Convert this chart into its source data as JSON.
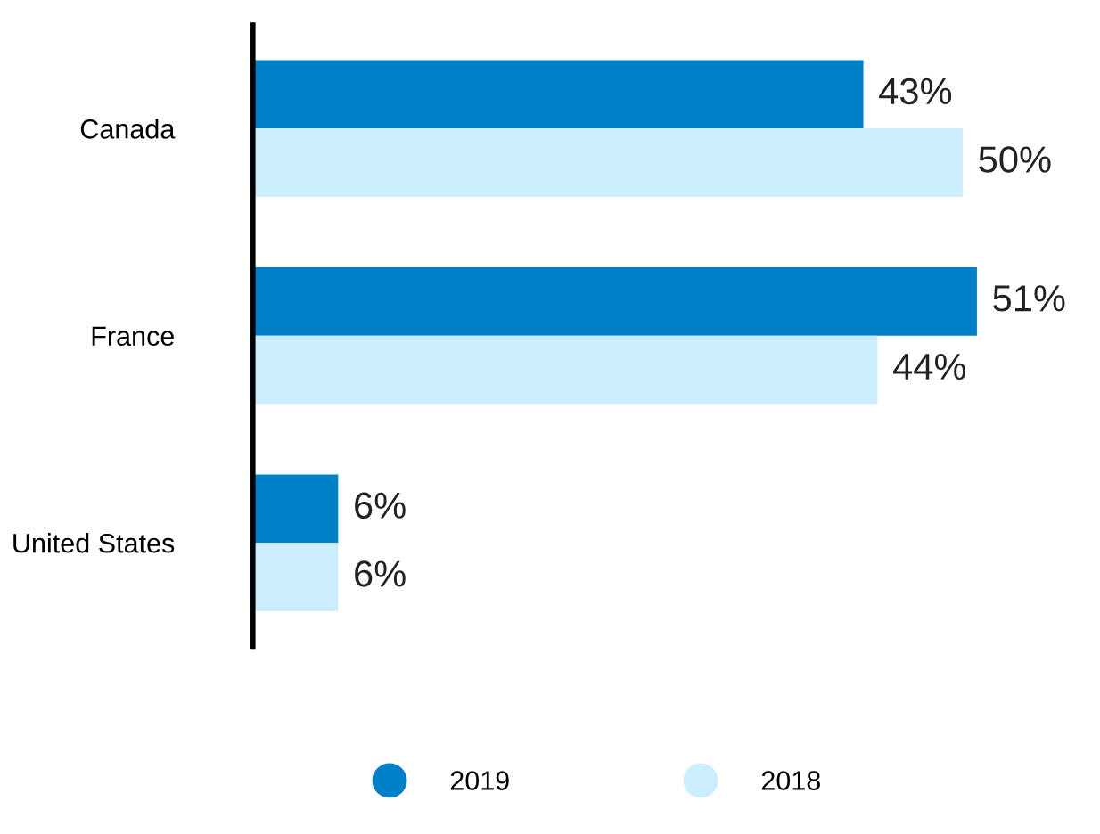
{
  "chart_data": {
    "type": "bar",
    "orientation": "horizontal",
    "categories": [
      "Canada",
      "France",
      "United States"
    ],
    "series": [
      {
        "name": "2019",
        "color": "#0080c6",
        "values": [
          43,
          51,
          6
        ],
        "value_labels": [
          "43%",
          "51%",
          "6%"
        ]
      },
      {
        "name": "2018",
        "color": "#cceeff",
        "values": [
          50,
          44,
          6
        ],
        "value_labels": [
          "50%",
          "44%",
          "6%"
        ]
      }
    ],
    "tick_labels": "y",
    "legend": "bottom",
    "grid": false
  }
}
